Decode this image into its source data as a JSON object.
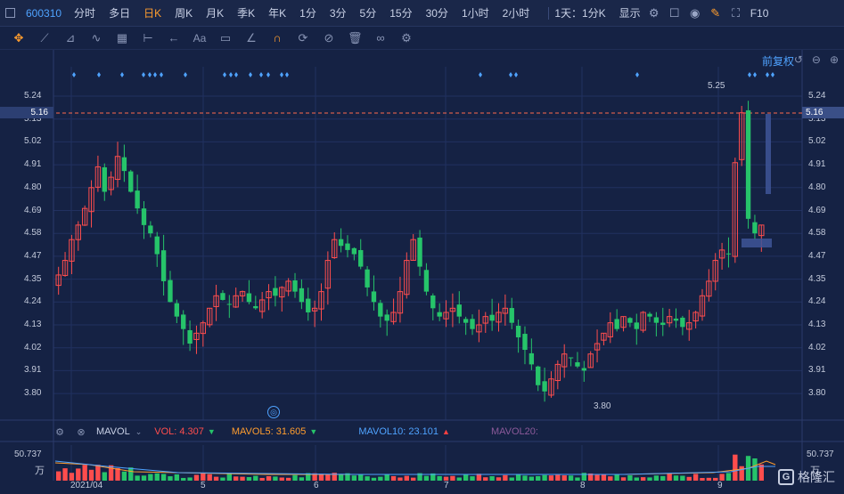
{
  "toolbar": {
    "code": "600310",
    "timeframes": [
      "分时",
      "多日",
      "日K",
      "周K",
      "月K",
      "季K",
      "年K",
      "1分",
      "3分",
      "5分",
      "15分",
      "30分",
      "1小时",
      "2小时"
    ],
    "active": "日K",
    "range": "1天：1分K",
    "display": "显示",
    "f10": "F10"
  },
  "chart": {
    "adjust_label": "前复权",
    "price_axis": [
      "5.24",
      "5.13",
      "5.02",
      "4.91",
      "4.80",
      "4.69",
      "4.58",
      "4.47",
      "4.35",
      "4.24",
      "4.13",
      "4.02",
      "3.91",
      "3.80"
    ],
    "current_price": "5.16",
    "high_label": "5.25",
    "low_label": "3.80"
  },
  "volume": {
    "name": "MAVOL",
    "vol": "VOL: 4.307",
    "ma5": "MAVOL5: 31.605",
    "ma10": "MAVOL10: 23.101",
    "ma20": "MAVOL20:",
    "axis_top": "50.737",
    "unit": "万"
  },
  "dates": [
    "2021/04",
    "5",
    "6",
    "7",
    "8",
    "9"
  ],
  "watermark": "格隆汇",
  "colors": {
    "up": "#ff4d4d",
    "down": "#26c46a",
    "accent": "#ff9d2e",
    "blue": "#4fa3ff"
  }
}
